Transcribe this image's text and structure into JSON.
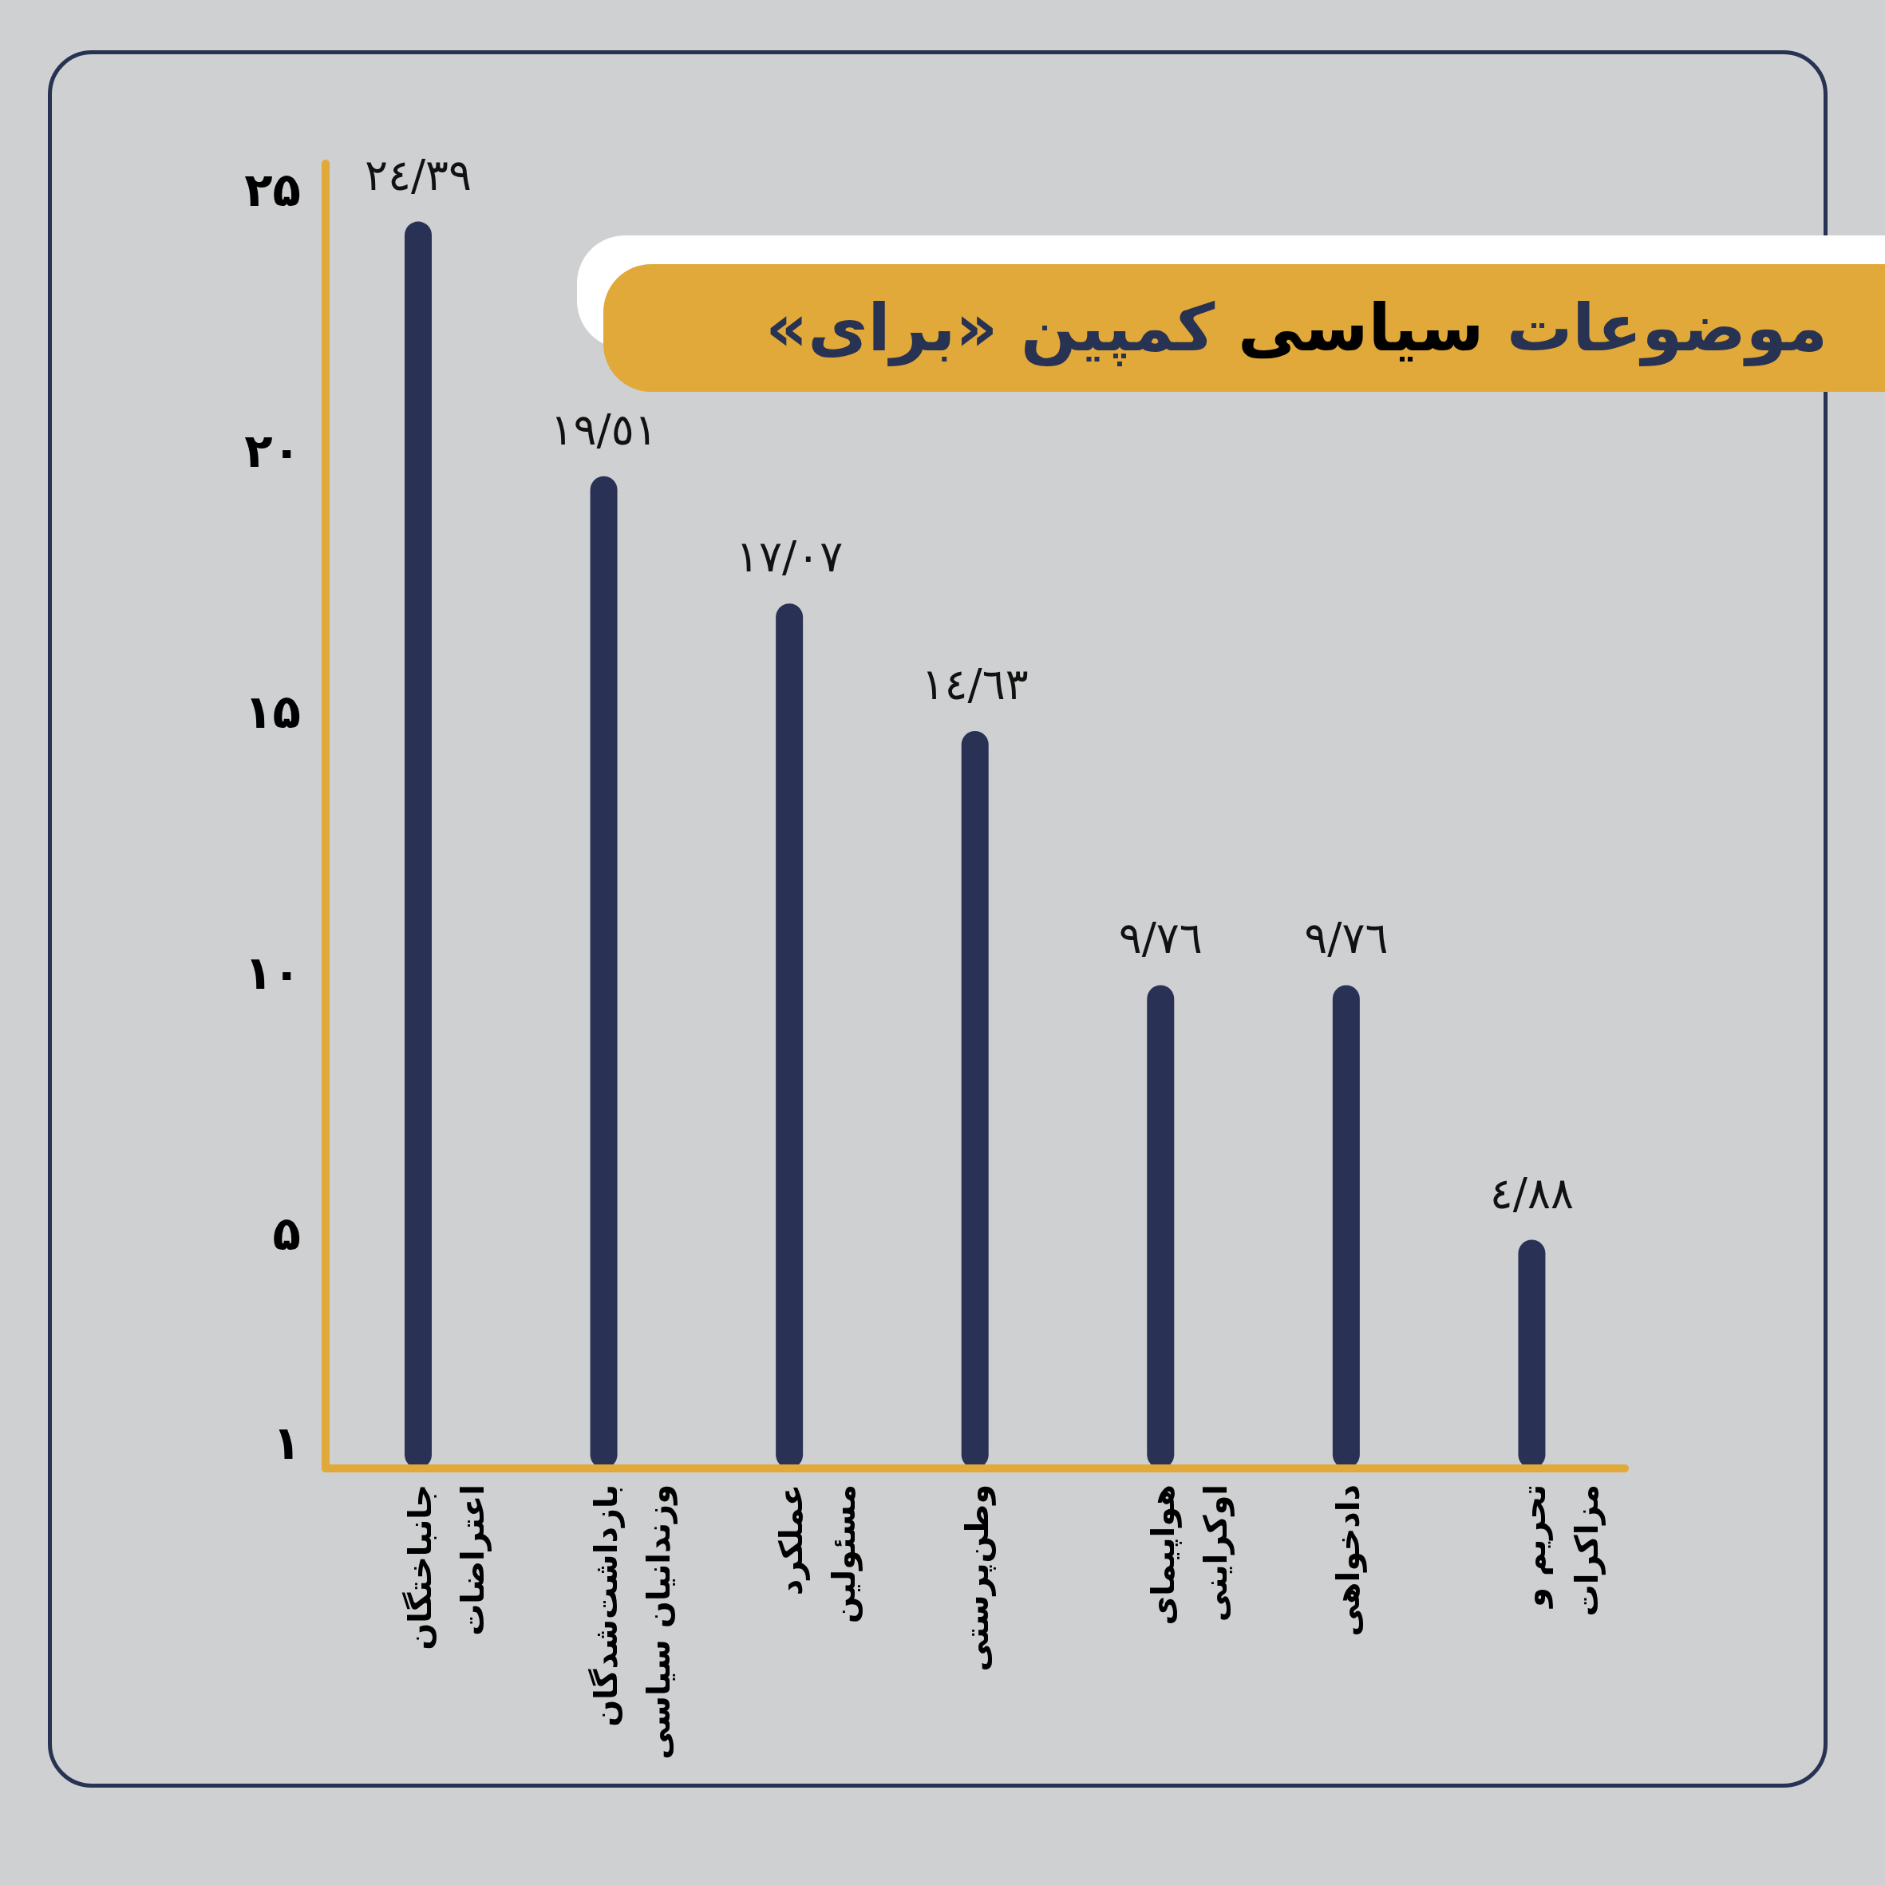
{
  "chart_data": {
    "type": "bar",
    "title": "موضوعات سیاسی کمپین «برای»",
    "categories": [
      "جانباختگان\nاعتراضات",
      "بازداشت‌شدگان\nوزندانیان سیاسی",
      "عملکرد\nمسئولین",
      "وطن‌پرستی",
      "هواپیمای\nاوکراینی",
      "دادخواهی",
      "تحریم و\nمزاکرات"
    ],
    "values": [
      24.39,
      19.51,
      17.07,
      14.63,
      9.76,
      9.76,
      4.88
    ],
    "value_labels": [
      "٢٤/٣٩",
      "١٩/٥١",
      "١٧/٠٧",
      "١٤/٦٣",
      "٩/٧٦",
      "٩/٧٦",
      "٤/٨٨"
    ],
    "color": "#293255",
    "ylim": [
      0.5,
      25.5
    ],
    "yticks": [
      {
        "value": 1,
        "label": "۱"
      },
      {
        "value": 5,
        "label": "۵"
      },
      {
        "value": 10,
        "label": "۱۰"
      },
      {
        "value": 15,
        "label": "۱۵"
      },
      {
        "value": 20,
        "label": "۲۰"
      },
      {
        "value": 25,
        "label": "۲۵"
      }
    ]
  }
}
